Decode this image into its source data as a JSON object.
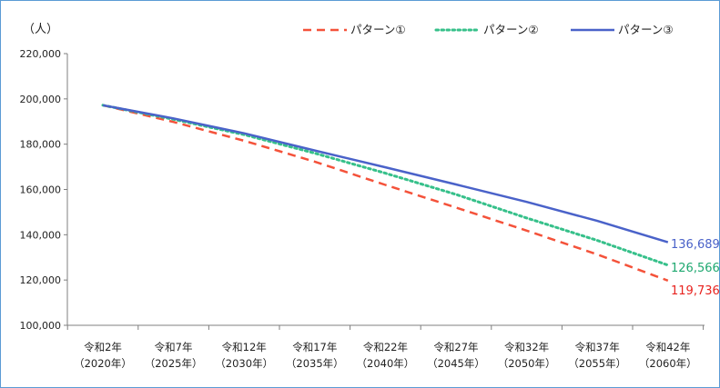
{
  "chart_data": {
    "type": "line",
    "unit_label": "（人）",
    "categories": [
      [
        "令和2年",
        "（2020年）"
      ],
      [
        "令和7年",
        "（2025年）"
      ],
      [
        "令和12年",
        "（2030年）"
      ],
      [
        "令和17年",
        "（2035年）"
      ],
      [
        "令和22年",
        "（2040年）"
      ],
      [
        "令和27年",
        "（2045年）"
      ],
      [
        "令和32年",
        "（2050年）"
      ],
      [
        "令和37年",
        "（2055年）"
      ],
      [
        "令和42年",
        "（2060年）"
      ]
    ],
    "ylim": [
      100000,
      220000
    ],
    "yticks": [
      100000,
      120000,
      140000,
      160000,
      180000,
      200000,
      220000
    ],
    "ytick_labels": [
      "100,000",
      "120,000",
      "140,000",
      "160,000",
      "180,000",
      "200,000",
      "220,000"
    ],
    "grid": false,
    "legend_position": "top-right",
    "series": [
      {
        "name": "パターン①",
        "values": [
          197200,
          189800,
          181500,
          172300,
          162000,
          152000,
          141800,
          131300,
          119736
        ],
        "end_label": "119,736",
        "color": "#f4523a",
        "label_color": "#e8231f",
        "style": "dashed"
      },
      {
        "name": "パターン②",
        "values": [
          197200,
          191000,
          184200,
          176000,
          167200,
          157800,
          147400,
          137500,
          126566
        ],
        "end_label": "126,566",
        "color": "#36c08a",
        "label_color": "#1fa870",
        "style": "dotted"
      },
      {
        "name": "パターン③",
        "values": [
          197200,
          191400,
          184800,
          177200,
          169800,
          162200,
          154500,
          146100,
          136689
        ],
        "end_label": "136,689",
        "color": "#4a62c9",
        "label_color": "#4a62c9",
        "style": "solid"
      }
    ]
  }
}
